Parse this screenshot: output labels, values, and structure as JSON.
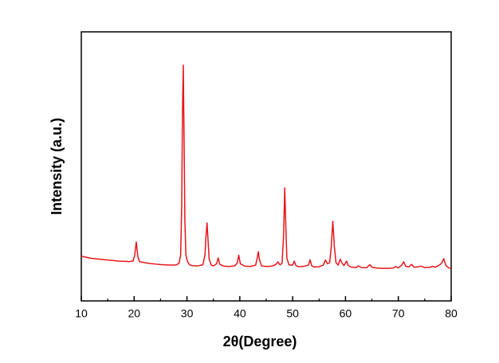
{
  "chart_data": {
    "type": "line",
    "xlabel": "2θ(Degree)",
    "ylabel": "Intensity (a.u.)",
    "xlim": [
      10,
      80
    ],
    "ylim": [
      0,
      100
    ],
    "xticks": [
      10,
      20,
      30,
      40,
      50,
      60,
      70,
      80
    ],
    "xminor_ticks": [
      15,
      25,
      35,
      45,
      55,
      65,
      75
    ],
    "series": [
      {
        "color": "#e8161b",
        "x": [
          10,
          11,
          12,
          13,
          14,
          15,
          16,
          17,
          18,
          19,
          19.8,
          20.1,
          20.4,
          20.7,
          21,
          22,
          23,
          24,
          25,
          26,
          27,
          28,
          28.5,
          28.8,
          29.0,
          29.15,
          29.3,
          29.45,
          29.6,
          29.8,
          30.1,
          30.5,
          31,
          32,
          33,
          33.4,
          33.6,
          33.8,
          34.0,
          34.2,
          34.6,
          35,
          35.6,
          35.9,
          36.2,
          37,
          38,
          39,
          39.5,
          39.8,
          40.1,
          41,
          42,
          43,
          43.3,
          43.5,
          43.7,
          44.1,
          45,
          46,
          46.8,
          47.2,
          47.6,
          48,
          48.3,
          48.5,
          48.7,
          48.9,
          49.3,
          50,
          50.3,
          50.6,
          51,
          52,
          53,
          53.3,
          53.6,
          54,
          55,
          55.8,
          56.2,
          56.6,
          57,
          57.3,
          57.6,
          57.9,
          58.2,
          58.6,
          59,
          59.3,
          59.7,
          60.2,
          60.5,
          61,
          62,
          62.4,
          63,
          64,
          64.6,
          65,
          66,
          67,
          68,
          69,
          69.5,
          70,
          70.6,
          71.0,
          71.4,
          72,
          72.5,
          73,
          73.8,
          74.3,
          75,
          76,
          76.5,
          77,
          77.6,
          78.2,
          78.6,
          79,
          79.5,
          80
        ],
        "values": [
          16.6,
          16.2,
          15.8,
          15.6,
          15.4,
          15.2,
          15.0,
          14.8,
          14.7,
          14.6,
          14.8,
          17,
          21.9,
          16.5,
          14.6,
          14.2,
          13.9,
          13.7,
          13.5,
          13.4,
          13.3,
          13.4,
          14,
          17,
          35,
          70,
          87.6,
          60,
          30,
          17,
          14.5,
          13.4,
          13.1,
          13.0,
          13.4,
          17,
          24,
          29,
          22,
          15.5,
          13.3,
          13.0,
          13.8,
          16,
          13.6,
          12.9,
          12.8,
          13.0,
          14,
          17,
          13.8,
          12.9,
          12.8,
          13.3,
          16,
          18.3,
          15.5,
          13.0,
          12.8,
          12.9,
          13.5,
          14.5,
          13.4,
          14,
          25,
          42,
          28,
          16,
          13.4,
          13.3,
          14.8,
          13.2,
          12.8,
          12.8,
          13.3,
          15.3,
          13.1,
          12.6,
          12.7,
          13.3,
          15.2,
          13.8,
          14.2,
          20,
          29.6,
          20,
          14.2,
          13.3,
          15.5,
          14.2,
          13.1,
          14.8,
          13.2,
          12.6,
          12.4,
          13.0,
          12.4,
          12.3,
          13.5,
          12.5,
          12.2,
          12.1,
          12.1,
          12.2,
          12.8,
          12.3,
          13.2,
          14.5,
          12.9,
          12.6,
          13.6,
          12.5,
          12.7,
          12.9,
          12.4,
          12.5,
          12.9,
          12.5,
          13.1,
          14.0,
          15.7,
          13.2,
          12.3,
          12.1
        ]
      }
    ]
  }
}
